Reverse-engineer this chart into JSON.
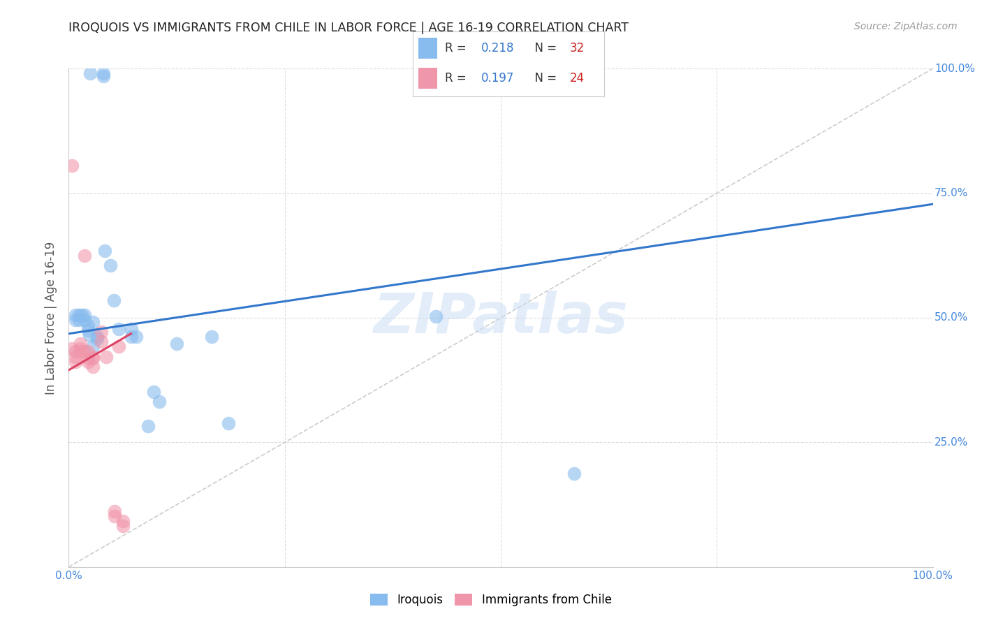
{
  "title": "IROQUOIS VS IMMIGRANTS FROM CHILE IN LABOR FORCE | AGE 16-19 CORRELATION CHART",
  "source": "Source: ZipAtlas.com",
  "ylabel": "In Labor Force | Age 16-19",
  "xlim": [
    0,
    1.0
  ],
  "ylim": [
    0,
    1.0
  ],
  "watermark": "ZIPatlas",
  "legend_r1": "0.218",
  "legend_n1": "32",
  "legend_r2": "0.197",
  "legend_n2": "24",
  "iroquois_color": "#88bbee",
  "chile_color": "#f096aa",
  "iroquois_line_color": "#3377cc",
  "chile_line_color": "#dd4466",
  "diagonal_color": "#cccccc",
  "grid_color": "#dddddd",
  "iroquois_scatter_x": [
    0.025,
    0.04,
    0.04,
    0.008,
    0.008,
    0.012,
    0.012,
    0.015,
    0.018,
    0.018,
    0.022,
    0.022,
    0.024,
    0.028,
    0.028,
    0.033,
    0.033,
    0.042,
    0.048,
    0.052,
    0.058,
    0.072,
    0.072,
    0.078,
    0.092,
    0.098,
    0.105,
    0.125,
    0.165,
    0.185,
    0.425,
    0.585
  ],
  "iroquois_scatter_y": [
    0.99,
    0.985,
    0.99,
    0.495,
    0.505,
    0.495,
    0.505,
    0.505,
    0.505,
    0.495,
    0.475,
    0.485,
    0.465,
    0.492,
    0.442,
    0.458,
    0.462,
    0.635,
    0.605,
    0.535,
    0.478,
    0.478,
    0.462,
    0.462,
    0.282,
    0.352,
    0.332,
    0.448,
    0.462,
    0.288,
    0.502,
    0.188
  ],
  "chile_scatter_x": [
    0.004,
    0.004,
    0.008,
    0.008,
    0.008,
    0.013,
    0.013,
    0.013,
    0.018,
    0.018,
    0.022,
    0.022,
    0.022,
    0.028,
    0.028,
    0.028,
    0.038,
    0.038,
    0.043,
    0.053,
    0.053,
    0.058,
    0.063,
    0.063
  ],
  "chile_scatter_y": [
    0.805,
    0.438,
    0.432,
    0.422,
    0.412,
    0.438,
    0.432,
    0.448,
    0.625,
    0.432,
    0.432,
    0.418,
    0.412,
    0.422,
    0.418,
    0.402,
    0.472,
    0.452,
    0.422,
    0.102,
    0.112,
    0.442,
    0.082,
    0.092
  ],
  "iroquois_line_x": [
    0.0,
    1.0
  ],
  "iroquois_line_y": [
    0.468,
    0.728
  ],
  "chile_line_x": [
    0.0,
    0.072
  ],
  "chile_line_y": [
    0.395,
    0.468
  ],
  "bg_color": "#ffffff",
  "title_color": "#222222",
  "axis_label_color": "#555555",
  "tick_color": "#4488dd",
  "source_color": "#999999",
  "right_tick_color": "#4488dd"
}
